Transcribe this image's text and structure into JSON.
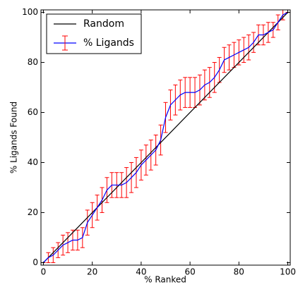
{
  "chart_data": {
    "type": "line",
    "xlabel": "% Ranked",
    "ylabel": "% Ligands Found",
    "xlim": [
      -1,
      101
    ],
    "ylim": [
      -1,
      101
    ],
    "xticks": [
      0,
      20,
      40,
      60,
      80,
      100
    ],
    "yticks": [
      0,
      20,
      40,
      60,
      80,
      100
    ],
    "legend": "upper left",
    "grid": false,
    "series": [
      {
        "name": "Random",
        "color": "#000000",
        "x": [
          0,
          100
        ],
        "values": [
          0,
          100
        ]
      },
      {
        "name": "% Ligands",
        "color": "#0000ff",
        "error_color": "#ff0000",
        "x": [
          0,
          2,
          4,
          6,
          8,
          10,
          12,
          14,
          16,
          18,
          20,
          22,
          24,
          26,
          28,
          30,
          32,
          34,
          36,
          38,
          40,
          42,
          44,
          46,
          48,
          50,
          52,
          54,
          56,
          58,
          60,
          62,
          64,
          66,
          68,
          70,
          72,
          74,
          76,
          78,
          80,
          82,
          84,
          86,
          88,
          90,
          92,
          94,
          96,
          98,
          100
        ],
        "values": [
          0,
          2,
          3,
          5,
          7,
          8,
          9,
          9,
          10,
          16,
          19,
          22,
          25,
          29,
          31,
          31,
          31,
          32,
          34,
          36,
          39,
          41,
          43,
          45,
          49,
          58,
          63,
          65,
          67,
          68,
          68,
          68,
          69,
          71,
          72,
          74,
          77,
          81,
          82,
          83,
          84,
          85,
          86,
          88,
          91,
          91,
          92,
          93,
          96,
          99,
          100
        ],
        "errors": [
          0,
          2,
          3,
          3,
          4,
          4,
          4,
          4,
          4,
          5,
          5,
          5,
          5,
          5,
          5,
          5,
          5,
          6,
          6,
          6,
          6,
          6,
          6,
          6,
          6,
          6,
          6,
          6,
          6,
          6,
          6,
          6,
          6,
          6,
          6,
          6,
          5,
          5,
          5,
          5,
          5,
          5,
          5,
          4,
          4,
          4,
          4,
          3,
          3,
          2,
          0
        ]
      }
    ]
  }
}
